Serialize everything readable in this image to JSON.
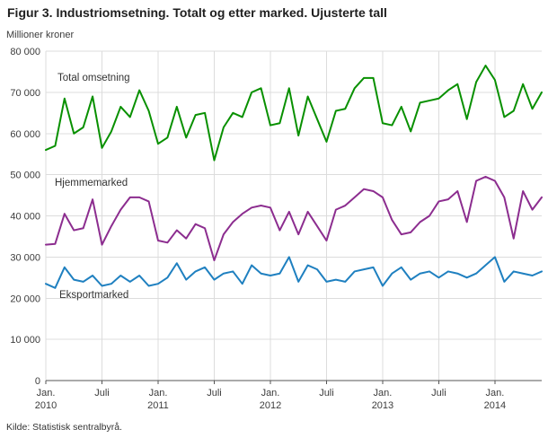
{
  "title": "Figur 3. Industriomsetning. Totalt og etter marked. Ujusterte tall",
  "source": "Kilde: Statistisk sentralbyrå.",
  "chart_data": {
    "type": "line",
    "unit_label": "Millioner kroner",
    "ylim": [
      0,
      80000
    ],
    "grid": true,
    "y_ticks": [
      {
        "value": 0,
        "label": "0"
      },
      {
        "value": 10000,
        "label": "10 000"
      },
      {
        "value": 20000,
        "label": "20 000"
      },
      {
        "value": 30000,
        "label": "30 000"
      },
      {
        "value": 40000,
        "label": "40 000"
      },
      {
        "value": 50000,
        "label": "50 000"
      },
      {
        "value": 60000,
        "label": "60 000"
      },
      {
        "value": 70000,
        "label": "70 000"
      },
      {
        "value": 80000,
        "label": "80 000"
      }
    ],
    "x_ticks": [
      {
        "index": 0,
        "line1": "Jan.",
        "line2": "2010"
      },
      {
        "index": 6,
        "line1": "Juli"
      },
      {
        "index": 12,
        "line1": "Jan.",
        "line2": "2011"
      },
      {
        "index": 18,
        "line1": "Juli"
      },
      {
        "index": 24,
        "line1": "Jan.",
        "line2": "2012"
      },
      {
        "index": 30,
        "line1": "Juli"
      },
      {
        "index": 36,
        "line1": "Jan.",
        "line2": "2013"
      },
      {
        "index": 42,
        "line1": "Juli"
      },
      {
        "index": 48,
        "line1": "Jan.",
        "line2": "2014"
      }
    ],
    "series": [
      {
        "name": "Total omsetning",
        "color": "#089000",
        "values": [
          56000,
          57000,
          68500,
          60000,
          61500,
          69000,
          56500,
          60500,
          66500,
          64000,
          70500,
          65500,
          57500,
          59000,
          66500,
          59000,
          64500,
          65000,
          53500,
          61500,
          65000,
          64000,
          70000,
          71000,
          62000,
          62500,
          71000,
          59500,
          69000,
          63500,
          58000,
          65500,
          66000,
          71000,
          73500,
          73500,
          62500,
          62000,
          66500,
          60500,
          67500,
          68000,
          68500,
          70500,
          72000,
          63500,
          72500,
          76500,
          73000,
          64000,
          65500,
          72000,
          66000,
          70000
        ]
      },
      {
        "name": "Hjemmemarked",
        "color": "#8c2d8f",
        "values": [
          33000,
          33200,
          40500,
          36500,
          37000,
          44000,
          33000,
          37500,
          41500,
          44500,
          44500,
          43500,
          34000,
          33500,
          36500,
          34500,
          38000,
          37000,
          29200,
          35500,
          38500,
          40500,
          42000,
          42500,
          42000,
          36500,
          41000,
          35500,
          41000,
          37500,
          34000,
          41500,
          42500,
          44500,
          46500,
          46000,
          44500,
          39000,
          35500,
          36000,
          38500,
          40000,
          43500,
          44000,
          46000,
          38500,
          48500,
          49500,
          48500,
          44500,
          34500,
          46000,
          41500,
          44500
        ]
      },
      {
        "name": "Eksportmarked",
        "color": "#1f80c0",
        "values": [
          23500,
          22500,
          27500,
          24500,
          24000,
          25500,
          23000,
          23500,
          25500,
          24000,
          25500,
          23000,
          23500,
          25000,
          28500,
          24500,
          26500,
          27500,
          24500,
          26000,
          26500,
          23500,
          28000,
          26000,
          25500,
          26000,
          30000,
          24000,
          28000,
          27000,
          24000,
          24500,
          24000,
          26500,
          27000,
          27500,
          23000,
          26000,
          27500,
          24500,
          26000,
          26500,
          25000,
          26500,
          26000,
          25000,
          26000,
          28000,
          30000,
          24000,
          26500,
          26000,
          25500,
          26500
        ]
      }
    ]
  }
}
